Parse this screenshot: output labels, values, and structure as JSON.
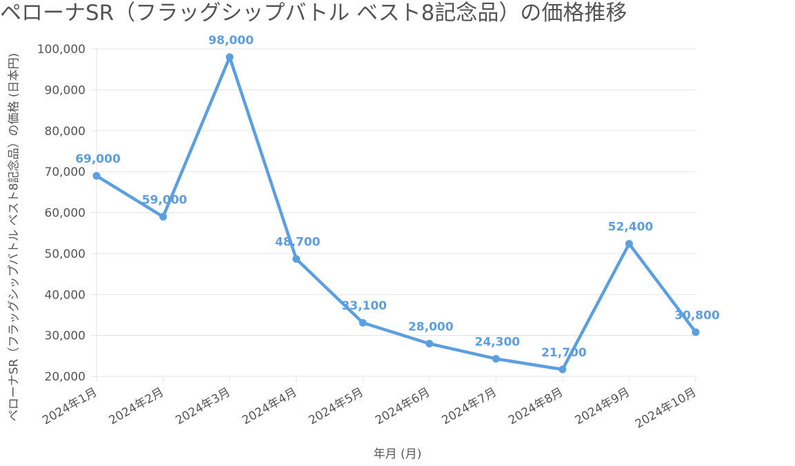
{
  "chart_data": {
    "type": "line",
    "title": "ペローナSR（フラッグシップバトル ベスト8記念品）の価格推移",
    "xlabel": "年月 (月)",
    "ylabel": "ペローナSR（フラッグシップバトル ベスト8記念品）の価格 (日本円)",
    "categories": [
      "2024年1月",
      "2024年2月",
      "2024年3月",
      "2024年4月",
      "2024年5月",
      "2024年6月",
      "2024年7月",
      "2024年8月",
      "2024年9月",
      "2024年10月"
    ],
    "values": [
      69000,
      59000,
      98000,
      48700,
      33100,
      28000,
      24300,
      21700,
      52400,
      30800
    ],
    "data_labels": [
      "69,000",
      "59,000",
      "98,000",
      "48,700",
      "33,100",
      "28,000",
      "24,300",
      "21,700",
      "52,400",
      "30,800"
    ],
    "ylim": [
      20000,
      100000
    ],
    "yticks": [
      20000,
      30000,
      40000,
      50000,
      60000,
      70000,
      80000,
      90000,
      100000
    ],
    "ytick_labels": [
      "20,000",
      "30,000",
      "40,000",
      "50,000",
      "60,000",
      "70,000",
      "80,000",
      "90,000",
      "100,000"
    ],
    "grid": true,
    "legend": "none",
    "colors": {
      "line": "#5b9fe0",
      "label": "#5b9fe0",
      "grid": "#e3e3e3",
      "axis_text": "#555555"
    }
  }
}
